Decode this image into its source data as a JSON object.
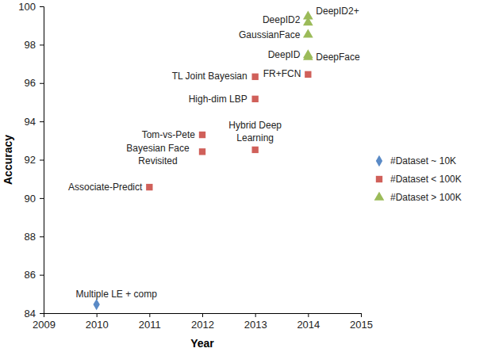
{
  "chart_data": {
    "type": "scatter",
    "x_label": "Year",
    "y_label": "Accuracy",
    "xlim": [
      2009,
      2015
    ],
    "xticks": [
      2009,
      2010,
      2011,
      2012,
      2013,
      2014,
      2015
    ],
    "ylim": [
      84,
      100
    ],
    "yticks": [
      84,
      86,
      88,
      90,
      92,
      94,
      96,
      98,
      100
    ],
    "grid": false,
    "legend": "right",
    "series": [
      {
        "name": "#Dataset ~ 10K",
        "color": "#5a8ac6",
        "marker": "diamond",
        "x": [
          2010
        ],
        "values": [
          84.45
        ],
        "point_labels": [
          "Multiple LE + comp"
        ]
      },
      {
        "name": "#Dataset < 100K",
        "color": "#d0605a",
        "marker": "square",
        "x": [
          2011,
          2012,
          2012,
          2013,
          2013,
          2013,
          2014
        ],
        "values": [
          90.57,
          93.3,
          92.42,
          92.52,
          95.17,
          96.33,
          96.45
        ],
        "point_labels": [
          "Associate-Predict",
          "Tom-vs-Pete",
          "Bayesian Face\nRevisited",
          "Hybrid Deep\nLearning",
          "High-dim LBP",
          "TL Joint Bayesian",
          "FR+FCN"
        ]
      },
      {
        "name": "#Dataset > 100K",
        "color": "#9bbb59",
        "marker": "triangle",
        "x": [
          2014,
          2014,
          2014,
          2014,
          2014
        ],
        "values": [
          97.35,
          97.45,
          98.52,
          99.15,
          99.47
        ],
        "point_labels": [
          "DeepFace",
          "DeepID",
          "GaussianFace",
          "DeepID2",
          "DeepID2+"
        ]
      }
    ]
  }
}
